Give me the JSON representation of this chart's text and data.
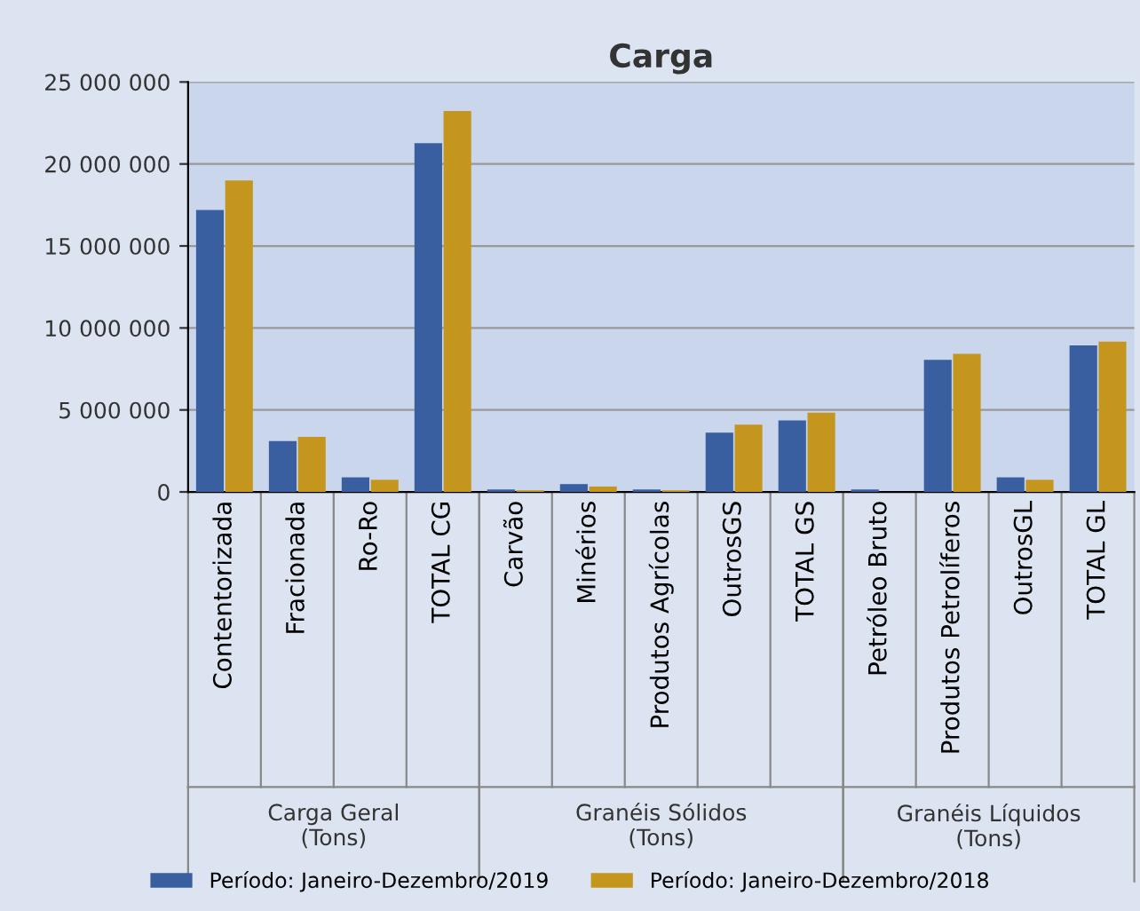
{
  "chart_data": {
    "type": "bar",
    "title": "Carga",
    "categories": [
      "Contentorizada",
      "Fracionada",
      "Ro-Ro",
      "TOTAL CG",
      "Carvão",
      "Minérios",
      "Produtos Agrícolas",
      "OutrosGS",
      "TOTAL GS",
      "Petróleo Bruto",
      "Produtos Petrolíferos",
      "OutrosGL",
      "TOTAL GL"
    ],
    "series": [
      {
        "name": "Período: Janeiro-Dezembro/2019",
        "color": "#3a5fa0",
        "values": [
          17200000,
          3100000,
          890000,
          21270000,
          150000,
          480000,
          150000,
          3620000,
          4360000,
          150000,
          8050000,
          890000,
          8940000
        ]
      },
      {
        "name": "Período: Janeiro-Dezembro/2018",
        "color": "#c4961e",
        "values": [
          19000000,
          3360000,
          740000,
          23230000,
          100000,
          330000,
          100000,
          4100000,
          4840000,
          0,
          8420000,
          740000,
          9160000
        ]
      }
    ],
    "annotations": [
      "Carga Geral\n(Tons)",
      "Granéis Sólidos\n(Tons)",
      "Granéis Líquidos\n(Tons)"
    ],
    "ylim": [
      0,
      25000000
    ],
    "yticks": [
      {
        "value": 0,
        "label": "0"
      },
      {
        "value": 5000000,
        "label": "5 000 000"
      },
      {
        "value": 10000000,
        "label": "10 000 000"
      },
      {
        "value": 15000000,
        "label": "15 000 000"
      },
      {
        "value": 20000000,
        "label": "20 000 000"
      },
      {
        "value": 25000000,
        "label": "25 000 000"
      }
    ],
    "grid": "y",
    "legend": "bottom"
  }
}
